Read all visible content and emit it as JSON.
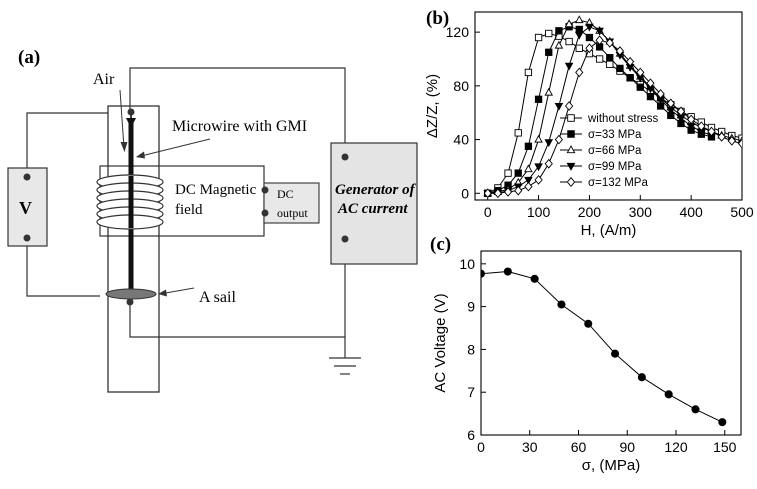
{
  "panel_a": {
    "label": "(a)",
    "air": "Air",
    "microwire": "Microwire with GMI",
    "magnetic_line1": "DC Magnetic",
    "magnetic_line2": "field",
    "dc_line1": "DC",
    "dc_line2": "output",
    "generator_line1": "Generator of",
    "generator_line2": "AC current",
    "voltmeter": "V",
    "sail": "A sail"
  },
  "chart_data": [
    {
      "panel": "(b)",
      "type": "line",
      "xlabel": "H, (A/m)",
      "ylabel": "ΔZ/Z, (%)",
      "xlim": [
        -25,
        500
      ],
      "ylim": [
        -5,
        135
      ],
      "xticks": [
        0,
        100,
        200,
        300,
        400,
        500
      ],
      "yticks": [
        0,
        40,
        80,
        120
      ],
      "legend_position": "inside-right",
      "series": [
        {
          "name": "without stress",
          "marker": "square-open",
          "x": [
            0,
            20,
            40,
            60,
            80,
            100,
            120,
            140,
            160,
            180,
            200,
            220,
            240,
            260,
            280,
            300,
            320,
            340,
            360,
            380,
            400,
            420,
            440,
            460,
            480,
            500
          ],
          "y": [
            0,
            4,
            15,
            45,
            90,
            116,
            119,
            117,
            113,
            108,
            104,
            100,
            96,
            91,
            86,
            81,
            76,
            71,
            66,
            61,
            57,
            53,
            49,
            46,
            43,
            41
          ]
        },
        {
          "name": "σ=33 MPa",
          "marker": "square-filled",
          "x": [
            0,
            20,
            40,
            60,
            80,
            100,
            120,
            140,
            160,
            180,
            200,
            220,
            240,
            260,
            280,
            300,
            320,
            340,
            360,
            380,
            400,
            420,
            440
          ],
          "y": [
            0,
            2,
            6,
            15,
            35,
            70,
            105,
            121,
            124,
            122,
            116,
            109,
            101,
            93,
            86,
            79,
            72,
            65,
            58,
            52,
            47,
            44,
            42
          ]
        },
        {
          "name": "σ=66 MPa",
          "marker": "triangle-up-open",
          "x": [
            0,
            20,
            40,
            60,
            80,
            100,
            120,
            140,
            160,
            180,
            200,
            220,
            240,
            260,
            280,
            300,
            320,
            340,
            360,
            380,
            400,
            420,
            440,
            460,
            480,
            500
          ],
          "y": [
            0,
            1,
            3,
            8,
            18,
            40,
            75,
            110,
            126,
            129,
            127,
            121,
            113,
            104,
            95,
            87,
            79,
            71,
            64,
            58,
            53,
            49,
            46,
            43,
            41,
            39
          ]
        },
        {
          "name": "σ=99 MPa",
          "marker": "triangle-down-filled",
          "x": [
            0,
            20,
            40,
            60,
            80,
            100,
            120,
            140,
            160,
            180,
            200,
            220,
            240,
            260,
            280,
            300,
            320,
            340,
            360,
            380,
            400,
            420,
            440
          ],
          "y": [
            0,
            0,
            2,
            5,
            10,
            20,
            38,
            65,
            95,
            118,
            124,
            121,
            113,
            103,
            94,
            86,
            78,
            70,
            62,
            56,
            50,
            46,
            43
          ]
        },
        {
          "name": "σ=132 MPa",
          "marker": "diamond-open",
          "x": [
            0,
            20,
            40,
            60,
            80,
            100,
            120,
            140,
            160,
            180,
            200,
            220,
            240,
            260,
            280,
            300,
            320,
            340,
            360,
            380,
            400,
            420,
            440,
            460,
            480,
            500
          ],
          "y": [
            0,
            0,
            1,
            2,
            5,
            10,
            22,
            40,
            65,
            90,
            108,
            114,
            112,
            106,
            98,
            90,
            82,
            74,
            67,
            61,
            55,
            50,
            46,
            42,
            39,
            37
          ]
        }
      ]
    },
    {
      "panel": "(c)",
      "type": "line",
      "xlabel": "σ, (MPa)",
      "ylabel": "AC Voltage (V)",
      "xlim": [
        0,
        160
      ],
      "ylim": [
        6,
        10.3
      ],
      "xticks": [
        0,
        30,
        60,
        90,
        120,
        150
      ],
      "yticks": [
        6,
        7,
        8,
        9,
        10
      ],
      "series": [
        {
          "name": "",
          "marker": "circle-filled",
          "x": [
            0,
            16.5,
            33,
            49.5,
            66,
            82.5,
            99,
            115.5,
            132,
            148.5
          ],
          "y": [
            9.77,
            9.82,
            9.65,
            9.05,
            8.6,
            7.9,
            7.35,
            6.95,
            6.6,
            6.3
          ]
        }
      ]
    }
  ]
}
